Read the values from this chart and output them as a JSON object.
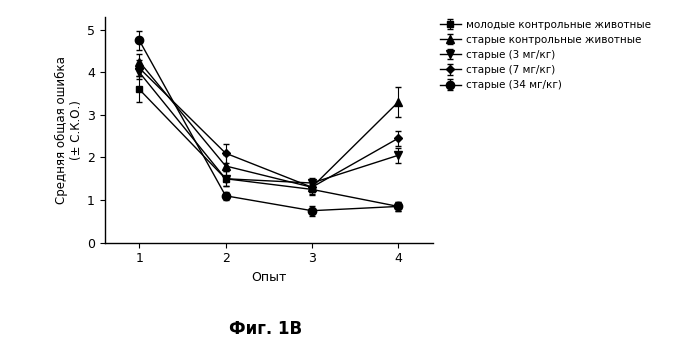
{
  "x": [
    1,
    2,
    3,
    4
  ],
  "series": [
    {
      "label": "молодые контрольные животные",
      "y": [
        3.6,
        1.5,
        1.25,
        0.85
      ],
      "yerr": [
        0.3,
        0.18,
        0.12,
        0.1
      ],
      "marker": "s",
      "markersize": 5,
      "color": "#000000"
    },
    {
      "label": "старые контрольные животные",
      "y": [
        4.25,
        1.8,
        1.3,
        3.3
      ],
      "yerr": [
        0.18,
        0.25,
        0.18,
        0.35
      ],
      "marker": "^",
      "markersize": 6,
      "color": "#000000"
    },
    {
      "label": "старые (3 мг/кг)",
      "y": [
        4.0,
        1.5,
        1.4,
        2.05
      ],
      "yerr": [
        0.15,
        0.18,
        0.12,
        0.18
      ],
      "marker": "v",
      "markersize": 6,
      "color": "#000000"
    },
    {
      "label": "старые (7 мг/кг)",
      "y": [
        4.1,
        2.1,
        1.3,
        2.45
      ],
      "yerr": [
        0.18,
        0.22,
        0.12,
        0.18
      ],
      "marker": "D",
      "markersize": 4,
      "color": "#000000"
    },
    {
      "label": "старые (34 мг/кг)",
      "y": [
        4.75,
        1.1,
        0.75,
        0.85
      ],
      "yerr": [
        0.22,
        0.1,
        0.12,
        0.1
      ],
      "marker": "o",
      "markersize": 6,
      "color": "#000000"
    }
  ],
  "xlabel": "Опыт",
  "ylabel": "Средняя общая ошибка\n(± С.К.О.)",
  "title": "Фиг. 1В",
  "xlim": [
    0.6,
    4.4
  ],
  "ylim": [
    0,
    5.3
  ],
  "yticks": [
    0,
    1,
    2,
    3,
    4,
    5
  ],
  "xticks": [
    1,
    2,
    3,
    4
  ],
  "background_color": "#ffffff",
  "legend_fontsize": 7.5,
  "axis_fontsize": 9,
  "title_fontsize": 12
}
